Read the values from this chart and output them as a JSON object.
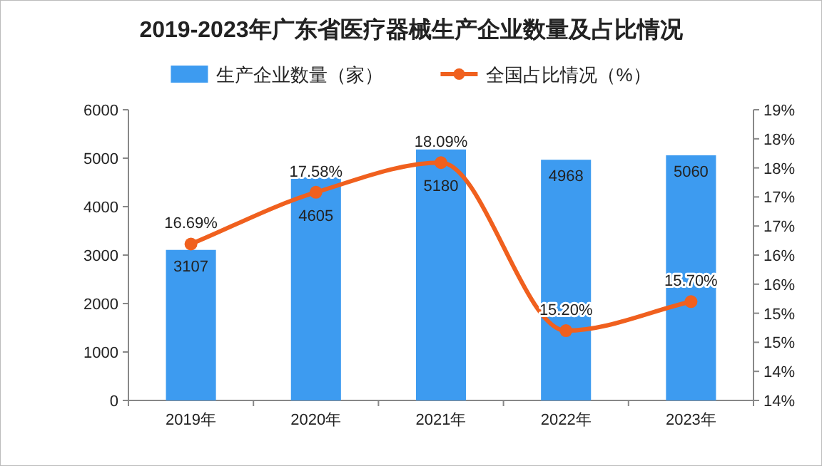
{
  "chart_data": {
    "type": "bar",
    "title": "2019-2023年广东省医疗器械生产企业数量及占比情况",
    "categories": [
      "2019年",
      "2020年",
      "2021年",
      "2022年",
      "2023年"
    ],
    "series": [
      {
        "name": "生产企业数量（家）",
        "color": "#3d9bf0",
        "values": [
          3107,
          4605,
          5180,
          4968,
          5060
        ],
        "value_labels": [
          "3107",
          "4605",
          "5180",
          "4968",
          "5060"
        ]
      },
      {
        "name": "全国占比情况（%）",
        "type": "line",
        "axis": "y2",
        "color": "#f0601e",
        "marker": "circle",
        "values": [
          16.69,
          17.58,
          18.09,
          15.2,
          15.7
        ],
        "value_labels": [
          "16.69%",
          "17.58%",
          "18.09%",
          "15.20%",
          "15.70%"
        ]
      }
    ],
    "ylim": [
      0,
      6000
    ],
    "yticks": [
      0,
      1000,
      2000,
      3000,
      4000,
      5000,
      6000
    ],
    "y2lim": [
      14,
      19
    ],
    "y2ticks": [
      {
        "value": 14,
        "label": "14%"
      },
      {
        "value": 14.5,
        "label": "14%"
      },
      {
        "value": 15,
        "label": "15%"
      },
      {
        "value": 15.5,
        "label": "15%"
      },
      {
        "value": 16,
        "label": "16%"
      },
      {
        "value": 16.5,
        "label": "16%"
      },
      {
        "value": 17,
        "label": "17%"
      },
      {
        "value": 17.5,
        "label": "17%"
      },
      {
        "value": 18,
        "label": "18%"
      },
      {
        "value": 18.5,
        "label": "18%"
      },
      {
        "value": 19,
        "label": "19%"
      }
    ],
    "legend": "top",
    "grid": false
  }
}
